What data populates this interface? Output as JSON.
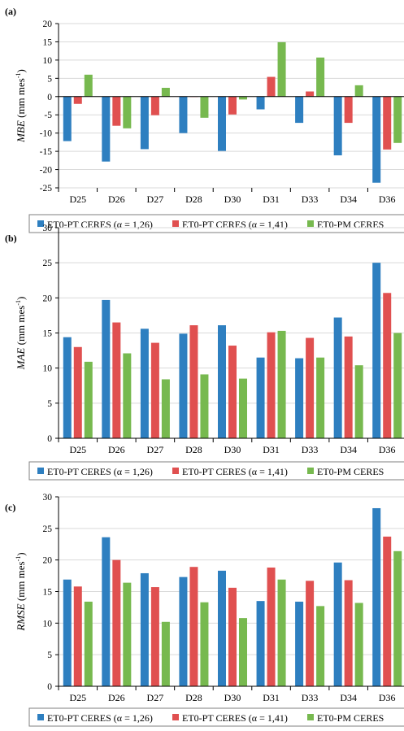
{
  "legend": [
    {
      "label": "ET0-PT CERES (α = 1,26)",
      "color": "#2e7fc0"
    },
    {
      "label": "ET0-PT CERES (α = 1,41)",
      "color": "#e05050"
    },
    {
      "label": "ET0-PM CERES",
      "color": "#77b94f"
    }
  ],
  "chart_data": [
    {
      "type": "bar",
      "panel_label": "(a)",
      "ylabel_main": "MBE",
      "ylabel_unit": " (mm mes",
      "ylabel_sup": "-1",
      "ylabel_close": ")",
      "ylim": [
        -25,
        20
      ],
      "yticks": [
        -25,
        -20,
        -15,
        -10,
        -5,
        0,
        5,
        10,
        15,
        20
      ],
      "categories": [
        "D25",
        "D26",
        "D27",
        "D28",
        "D30",
        "D31",
        "D33",
        "D34",
        "D36"
      ],
      "series": [
        {
          "name": "ET0-PT CERES (α = 1,26)",
          "values": [
            -12.2,
            -17.8,
            -14.4,
            -10.0,
            -14.9,
            -3.5,
            -7.2,
            -16.1,
            -23.6
          ]
        },
        {
          "name": "ET0-PT CERES (α = 1,41)",
          "values": [
            -2.0,
            -8.0,
            -5.1,
            0,
            -4.9,
            5.4,
            1.4,
            -7.2,
            -14.5
          ]
        },
        {
          "name": "ET0-PM CERES",
          "values": [
            6.0,
            -8.7,
            2.4,
            -5.8,
            -0.8,
            14.9,
            10.7,
            3.1,
            -12.7
          ]
        }
      ],
      "grid": true
    },
    {
      "type": "bar",
      "panel_label": "(b)",
      "ylabel_main": "MAE",
      "ylabel_unit": " (mm mes",
      "ylabel_sup": "-1",
      "ylabel_close": ")",
      "ylim": [
        0,
        30
      ],
      "yticks": [
        0,
        5,
        10,
        15,
        20,
        25,
        30
      ],
      "categories": [
        "D25",
        "D26",
        "D27",
        "D28",
        "D30",
        "D31",
        "D33",
        "D34",
        "D36"
      ],
      "series": [
        {
          "name": "ET0-PT CERES (α = 1,26)",
          "values": [
            14.4,
            19.7,
            15.6,
            14.9,
            16.1,
            11.5,
            11.4,
            17.2,
            25.0
          ]
        },
        {
          "name": "ET0-PT CERES (α = 1,41)",
          "values": [
            13.0,
            16.5,
            13.6,
            16.1,
            13.2,
            15.1,
            14.3,
            14.5,
            20.7
          ]
        },
        {
          "name": "ET0-PM CERES",
          "values": [
            10.9,
            12.1,
            8.4,
            9.1,
            8.5,
            15.3,
            11.5,
            10.4,
            15.0
          ]
        }
      ],
      "grid": true
    },
    {
      "type": "bar",
      "panel_label": "(c)",
      "ylabel_main": "RMSE",
      "ylabel_unit": " (mm mes",
      "ylabel_sup": "-1",
      "ylabel_close": ")",
      "ylim": [
        0,
        30
      ],
      "yticks": [
        0,
        5,
        10,
        15,
        20,
        25,
        30
      ],
      "categories": [
        "D25",
        "D26",
        "D27",
        "D28",
        "D30",
        "D31",
        "D33",
        "D34",
        "D36"
      ],
      "series": [
        {
          "name": "ET0-PT CERES (α = 1,26)",
          "values": [
            16.9,
            23.6,
            17.9,
            17.3,
            18.3,
            13.5,
            13.4,
            19.6,
            28.2
          ]
        },
        {
          "name": "ET0-PT CERES (α = 1,41)",
          "values": [
            15.8,
            20.0,
            15.7,
            18.9,
            15.6,
            18.8,
            16.7,
            16.8,
            23.7
          ]
        },
        {
          "name": "ET0-PM CERES",
          "values": [
            13.4,
            16.4,
            10.2,
            13.3,
            10.8,
            16.9,
            12.7,
            13.2,
            21.4
          ]
        }
      ],
      "grid": true
    }
  ]
}
